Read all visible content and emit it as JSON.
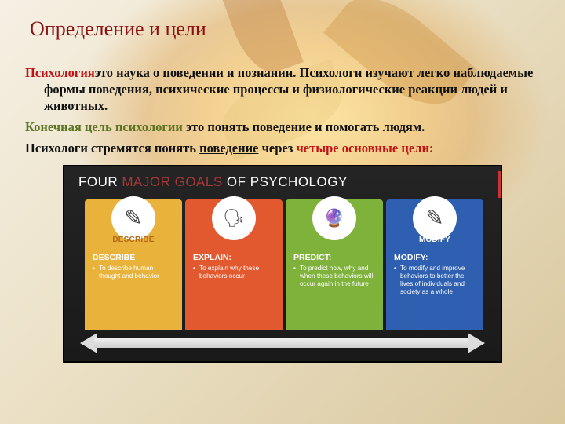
{
  "colors": {
    "title": "#8a1212",
    "accent": "#c01414",
    "subaccent": "#5b7422",
    "banner_accent": "#a63838"
  },
  "title": "Определение и цели",
  "para1_lead": "Психология",
  "para1_rest": "это наука о поведении и познании. Психологи изучают легко наблюдаемые формы поведения, психические процессы и физиологические реакции людей и животных.",
  "para2_lead": "Конечная цель психологии",
  "para2_rest": " это понять поведение и помогать людям.",
  "para3_a": " Психологи стремятся понять ",
  "para3_u": "поведение",
  "para3_b": " через ",
  "para3_c": "четыре основные цели:",
  "diagram": {
    "banner_a": "FOUR ",
    "banner_b": "MAJOR GOALS",
    "banner_c": " OF PSYCHOLOGY",
    "arrow_color": "#dddddd",
    "columns": [
      {
        "bg": "#e9b23b",
        "icon_label": "DESCRiBE",
        "icon_label_color": "#b06a18",
        "icon_glyph": "✎",
        "heading": "DESCRIBE",
        "bullet": "To describe human thought and behavior"
      },
      {
        "bg": "#e2582f",
        "icon_label": "",
        "icon_label_color": "#ffffff",
        "icon_glyph": "🗣",
        "heading": "EXPLAIN:",
        "bullet": "To explain why these behaviors occur"
      },
      {
        "bg": "#7fb23a",
        "icon_label": "",
        "icon_label_color": "#ffffff",
        "icon_glyph": "🔮",
        "heading": "PREDICT:",
        "bullet": "To predict how, why and when these behaviors will occur again in the future"
      },
      {
        "bg": "#2f5fb0",
        "icon_label": "MODIFY",
        "icon_label_color": "#ffffff",
        "icon_glyph": "✎",
        "heading": "MODIFY:",
        "bullet": "To modify and improve behaviors to better the lives of individuals and society as a whole"
      }
    ]
  }
}
